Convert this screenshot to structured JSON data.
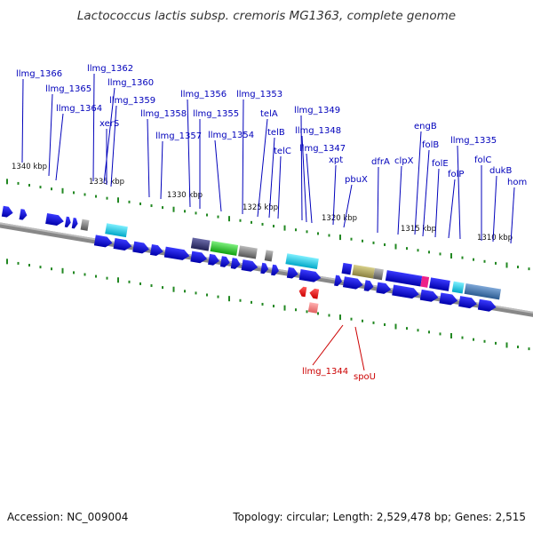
{
  "title": "Lactococcus lactis subsp. cremoris MG1363, complete genome",
  "footer": {
    "accession": "Accession: NC_009004",
    "topology": "Topology: circular; Length: 2,529,478 bp; Genes: 2,515"
  },
  "colors": {
    "forward_gene": "#0000cc",
    "reverse_gene": "#ee0000",
    "label_forward": "#0000bb",
    "label_reverse": "#cc0000",
    "backbone": "#888888",
    "tick_marks": "#228822"
  },
  "ticks": [
    "1340 kbp",
    "1335 kbp",
    "1330 kbp",
    "1325 kbp",
    "1320 kbp",
    "1315 kbp",
    "1310 kbp"
  ],
  "gene_labels": [
    "llmg_1366",
    "llmg_1365",
    "llmg_1364",
    "llmg_1362",
    "llmg_1360",
    "xerS",
    "llmg_1359",
    "llmg_1358",
    "llmg_1357",
    "llmg_1356",
    "llmg_1355",
    "llmg_1354",
    "llmg_1353",
    "telA",
    "telB",
    "telC",
    "llmg_1349",
    "llmg_1348",
    "llmg_1347",
    "xpt",
    "pbuX",
    "dfrA",
    "clpX",
    "engB",
    "folB",
    "folE",
    "folP",
    "llmg_1335",
    "folC",
    "dukB",
    "hom"
  ],
  "reverse_labels": [
    "llmg_1344",
    "spoU"
  ]
}
